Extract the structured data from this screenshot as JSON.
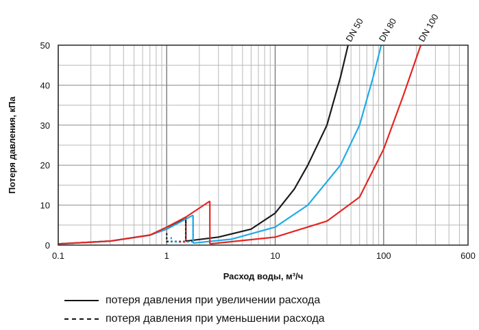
{
  "chart_data": {
    "type": "line",
    "x_scale": "log",
    "xlim": [
      0.1,
      600
    ],
    "ylim": [
      0,
      50
    ],
    "x_ticks": [
      {
        "value": 0.1,
        "label": "0.1"
      },
      {
        "value": 1,
        "label": "1"
      },
      {
        "value": 10,
        "label": "10"
      },
      {
        "value": 100,
        "label": "100"
      },
      {
        "value": 600,
        "label": "600"
      }
    ],
    "y_ticks": [
      {
        "value": 0,
        "label": "0"
      },
      {
        "value": 10,
        "label": "10"
      },
      {
        "value": 20,
        "label": "20"
      },
      {
        "value": 30,
        "label": "30"
      },
      {
        "value": 40,
        "label": "40"
      },
      {
        "value": 50,
        "label": "50"
      }
    ],
    "grid": true,
    "xlabel": "Расход воды, м³/ч",
    "ylabel": "Потеря давления, кПа",
    "series": [
      {
        "name": "DN 50",
        "color": "#1a1a1a",
        "increasing": [
          [
            0.1,
            0.3
          ],
          [
            0.3,
            1.0
          ],
          [
            0.7,
            2.5
          ],
          [
            1.0,
            4.0
          ],
          [
            1.5,
            7.0
          ]
        ],
        "increasing_upper": [
          [
            1.5,
            1.0
          ],
          [
            3,
            2.0
          ],
          [
            6,
            4.0
          ],
          [
            10,
            8.0
          ],
          [
            15,
            14.0
          ],
          [
            20,
            20.0
          ],
          [
            30,
            30.0
          ],
          [
            40,
            42.0
          ],
          [
            47,
            50.0
          ]
        ],
        "decreasing": [
          [
            1.0,
            3.0
          ],
          [
            1.0,
            0.9
          ],
          [
            1.5,
            0.9
          ],
          [
            1.5,
            7.0
          ]
        ]
      },
      {
        "name": "DN 80",
        "color": "#1eaae8",
        "increasing": [
          [
            0.1,
            0.3
          ],
          [
            0.3,
            1.0
          ],
          [
            0.7,
            2.5
          ],
          [
            1.0,
            4.0
          ],
          [
            1.5,
            6.5
          ],
          [
            1.75,
            7.5
          ]
        ],
        "increasing_upper": [
          [
            1.75,
            0.5
          ],
          [
            4,
            1.5
          ],
          [
            10,
            4.5
          ],
          [
            20,
            10.0
          ],
          [
            40,
            20.0
          ],
          [
            60,
            30.0
          ],
          [
            80,
            42.0
          ],
          [
            95,
            50.0
          ]
        ],
        "decreasing": [
          [
            1.1,
            2.0
          ],
          [
            1.1,
            0.8
          ],
          [
            1.75,
            0.8
          ],
          [
            1.75,
            7.5
          ]
        ]
      },
      {
        "name": "DN 100",
        "color": "#e52421",
        "increasing": [
          [
            0.1,
            0.3
          ],
          [
            0.3,
            1.0
          ],
          [
            0.7,
            2.5
          ],
          [
            1.0,
            4.5
          ],
          [
            1.5,
            7.0
          ],
          [
            2.5,
            11.0
          ]
        ],
        "increasing_upper": [
          [
            2.5,
            0.3
          ],
          [
            10,
            2.0
          ],
          [
            30,
            6.0
          ],
          [
            60,
            12.0
          ],
          [
            100,
            24.0
          ],
          [
            150,
            37.0
          ],
          [
            220,
            50.0
          ]
        ],
        "decreasing": [
          [
            1.3,
            0.8
          ],
          [
            1.5,
            0.8
          ],
          [
            1.5,
            5.5
          ]
        ]
      }
    ]
  },
  "legend": {
    "solid_label": "потеря давления при увеличении расхода",
    "dashed_label": "потеря давления при уменьшении расхода"
  }
}
